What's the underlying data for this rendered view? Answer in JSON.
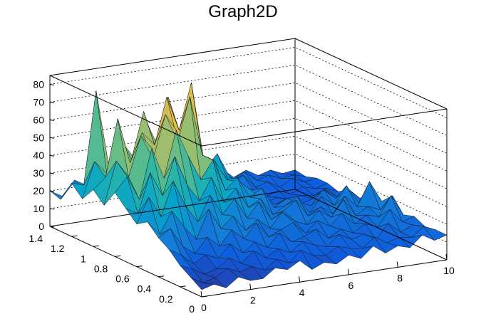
{
  "chart_data": {
    "type": "surface",
    "title": "Graph2D",
    "xlabel": "",
    "ylabel": "",
    "zlabel": "",
    "xlim": [
      0,
      10
    ],
    "ylim": [
      0,
      1.4
    ],
    "zlim": [
      0,
      85
    ],
    "x_ticks": [
      "0",
      "2",
      "4",
      "6",
      "8",
      "10"
    ],
    "y_ticks": [
      "0",
      "0.2",
      "0.4",
      "0.6",
      "0.8",
      "1",
      "1.2",
      "1.4"
    ],
    "z_ticks": [
      "0",
      "10",
      "20",
      "30",
      "40",
      "50",
      "60",
      "70",
      "80"
    ],
    "grid": true,
    "colormap": "parula",
    "colors": [
      "#352a87",
      "#0f5cdd",
      "#1481d6",
      "#06a4ca",
      "#2eb7a4",
      "#87bf77",
      "#d1bb59",
      "#fec832",
      "#f9fb0e"
    ],
    "grid_x": [
      0,
      0.5,
      1,
      1.5,
      2,
      2.5,
      3,
      3.5,
      4,
      4.5,
      5,
      5.5,
      6,
      6.5,
      7,
      7.5,
      8,
      8.5,
      9,
      9.5,
      10
    ],
    "grid_y": [
      0,
      0.1,
      0.2,
      0.3,
      0.4,
      0.5,
      0.6,
      0.7,
      0.8,
      0.9,
      1.0,
      1.1,
      1.2,
      1.3,
      1.4
    ],
    "z": [
      [
        4,
        6,
        3,
        8,
        5,
        5,
        10,
        8,
        12,
        6,
        9,
        7,
        11,
        8,
        14,
        9,
        12,
        10,
        16,
        12,
        14
      ],
      [
        8,
        4,
        6,
        10,
        7,
        9,
        6,
        11,
        8,
        14,
        10,
        9,
        13,
        11,
        10,
        15,
        11,
        13,
        12,
        17,
        14
      ],
      [
        12,
        9,
        5,
        7,
        12,
        8,
        14,
        9,
        13,
        10,
        15,
        12,
        10,
        16,
        12,
        14,
        10,
        18,
        12,
        15,
        13
      ],
      [
        18,
        14,
        8,
        12,
        9,
        16,
        10,
        15,
        11,
        18,
        12,
        14,
        17,
        11,
        15,
        12,
        16,
        13,
        22,
        14,
        16
      ],
      [
        22,
        26,
        15,
        10,
        18,
        12,
        20,
        14,
        22,
        13,
        16,
        19,
        12,
        18,
        14,
        20,
        13,
        17,
        15,
        26,
        14
      ],
      [
        28,
        20,
        32,
        22,
        14,
        30,
        18,
        24,
        15,
        20,
        14,
        22,
        16,
        13,
        20,
        15,
        24,
        14,
        18,
        15,
        22
      ],
      [
        24,
        38,
        26,
        45,
        30,
        20,
        34,
        22,
        30,
        18,
        26,
        15,
        19,
        24,
        14,
        18,
        13,
        22,
        15,
        28,
        16
      ],
      [
        30,
        26,
        48,
        34,
        55,
        38,
        28,
        40,
        25,
        32,
        20,
        24,
        14,
        18,
        22,
        12,
        20,
        14,
        24,
        13,
        18
      ],
      [
        36,
        44,
        30,
        58,
        40,
        66,
        50,
        36,
        46,
        28,
        34,
        22,
        26,
        14,
        18,
        15,
        12,
        20,
        14,
        18,
        12
      ],
      [
        26,
        50,
        40,
        62,
        48,
        72,
        56,
        80,
        46,
        42,
        30,
        28,
        22,
        16,
        12,
        14,
        10,
        12,
        16,
        11,
        14
      ],
      [
        32,
        38,
        70,
        44,
        60,
        52,
        78,
        58,
        84,
        40,
        36,
        26,
        20,
        14,
        10,
        12,
        9,
        11,
        10,
        13,
        10
      ],
      [
        24,
        44,
        36,
        56,
        42,
        68,
        46,
        74,
        52,
        62,
        30,
        38,
        24,
        18,
        14,
        10,
        12,
        9,
        12,
        10,
        12
      ],
      [
        30,
        28,
        80,
        38,
        50,
        40,
        60,
        44,
        56,
        34,
        48,
        22,
        32,
        16,
        20,
        12,
        14,
        10,
        14,
        11,
        12
      ],
      [
        18,
        26,
        22,
        34,
        28,
        42,
        30,
        38,
        26,
        34,
        22,
        28,
        18,
        24,
        14,
        18,
        12,
        14,
        11,
        12,
        10
      ],
      [
        20,
        16,
        24,
        20,
        30,
        22,
        28,
        20,
        26,
        18,
        24,
        16,
        22,
        14,
        18,
        12,
        15,
        11,
        13,
        10,
        11
      ]
    ]
  }
}
